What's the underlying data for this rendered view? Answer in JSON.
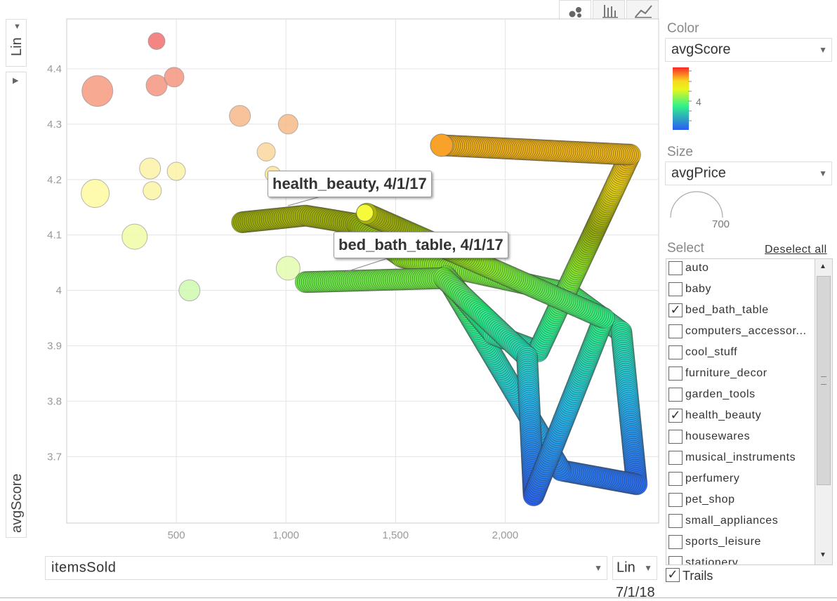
{
  "chart_data": {
    "type": "scatter",
    "xlabel": "itemsSold",
    "ylabel": "avgScore",
    "xlim": [
      0,
      2700
    ],
    "ylim": [
      3.58,
      4.49
    ],
    "x_ticks": [
      "500",
      "1,000",
      "1,500",
      "2,000"
    ],
    "x_tick_values": [
      500,
      1000,
      1500,
      2000
    ],
    "y_ticks": [
      "4.4",
      "4.3",
      "4.2",
      "4.1",
      "4",
      "3.9",
      "3.8",
      "3.7"
    ],
    "y_tick_values": [
      4.4,
      4.3,
      4.2,
      4.1,
      4.0,
      3.9,
      3.8,
      3.7
    ],
    "color_by": "avgScore",
    "color_legend_tick": "4",
    "size_by": "avgPrice",
    "size_legend_value": "700",
    "date": "7/1/18",
    "bubbles": [
      {
        "x": 410,
        "y": 4.45,
        "r": 12,
        "color": "#f27070"
      },
      {
        "x": 140,
        "y": 4.36,
        "r": 22,
        "color": "#f69a7f"
      },
      {
        "x": 410,
        "y": 4.37,
        "r": 15,
        "color": "#f49580"
      },
      {
        "x": 490,
        "y": 4.385,
        "r": 14,
        "color": "#f49580"
      },
      {
        "x": 790,
        "y": 4.315,
        "r": 15,
        "color": "#f7b889"
      },
      {
        "x": 1010,
        "y": 4.3,
        "r": 14,
        "color": "#f7bb89"
      },
      {
        "x": 910,
        "y": 4.25,
        "r": 13,
        "color": "#fad79c"
      },
      {
        "x": 940,
        "y": 4.21,
        "r": 11,
        "color": "#fbe39d"
      },
      {
        "x": 380,
        "y": 4.22,
        "r": 15,
        "color": "#fcf2a6"
      },
      {
        "x": 500,
        "y": 4.215,
        "r": 13,
        "color": "#fcf2a6"
      },
      {
        "x": 130,
        "y": 4.175,
        "r": 20,
        "color": "#fefaa0"
      },
      {
        "x": 390,
        "y": 4.18,
        "r": 13,
        "color": "#fcf5a6"
      },
      {
        "x": 310,
        "y": 4.097,
        "r": 18,
        "color": "#f1fba6"
      },
      {
        "x": 1010,
        "y": 4.04,
        "r": 17,
        "color": "#e3fcae"
      },
      {
        "x": 560,
        "y": 4.0,
        "r": 15,
        "color": "#cff9ae"
      }
    ],
    "highlight_bubbles": [
      {
        "x": 1360,
        "y": 4.14,
        "r": 12,
        "color": "#f5fb3a"
      },
      {
        "x": 1710,
        "y": 4.262,
        "r": 16,
        "color": "#f9a22a"
      }
    ],
    "trails": [
      {
        "name": "health_beauty",
        "tooltip": "health_beauty, 4/1/17",
        "points": [
          [
            800,
            4.123
          ],
          [
            1090,
            4.135
          ],
          [
            1320,
            4.12
          ],
          [
            1530,
            4.06
          ],
          [
            2290,
            3.995
          ],
          [
            2530,
            3.925
          ],
          [
            2600,
            3.65
          ],
          [
            2255,
            3.675
          ],
          [
            1730,
            4.025
          ],
          [
            1950,
            3.92
          ],
          [
            2150,
            3.89
          ],
          [
            2570,
            4.245
          ],
          [
            1710,
            4.262
          ]
        ]
      },
      {
        "name": "bed_bath_table",
        "tooltip": "bed_bath_table, 4/1/17",
        "points": [
          [
            1090,
            4.015
          ],
          [
            1720,
            4.022
          ],
          [
            2100,
            3.88
          ],
          [
            2130,
            3.63
          ],
          [
            2450,
            3.95
          ],
          [
            1360,
            4.14
          ]
        ]
      }
    ]
  },
  "tabs": [
    {
      "name": "bubble",
      "icon": "bubble-chart-icon"
    },
    {
      "name": "bar",
      "icon": "bar-chart-icon"
    },
    {
      "name": "line",
      "icon": "line-chart-icon"
    }
  ],
  "y_axis_scale": "Lin",
  "x_axis_scale": "Lin",
  "x_axis_dropdown": "itemsSold",
  "y_axis_dropdown": "avgScore",
  "color_panel": {
    "title": "Color",
    "value": "avgScore"
  },
  "size_panel": {
    "title": "Size",
    "value": "avgPrice"
  },
  "select_panel": {
    "title": "Select",
    "deselect_label": "Deselect all",
    "items": [
      {
        "label": "auto",
        "checked": false
      },
      {
        "label": "baby",
        "checked": false
      },
      {
        "label": "bed_bath_table",
        "checked": true
      },
      {
        "label": "computers_accessor...",
        "checked": false
      },
      {
        "label": "cool_stuff",
        "checked": false
      },
      {
        "label": "furniture_decor",
        "checked": false
      },
      {
        "label": "garden_tools",
        "checked": false
      },
      {
        "label": "health_beauty",
        "checked": true
      },
      {
        "label": "housewares",
        "checked": false
      },
      {
        "label": "musical_instruments",
        "checked": false
      },
      {
        "label": "perfumery",
        "checked": false
      },
      {
        "label": "pet_shop",
        "checked": false
      },
      {
        "label": "small_appliances",
        "checked": false
      },
      {
        "label": "sports_leisure",
        "checked": false
      },
      {
        "label": "stationery",
        "checked": false
      }
    ]
  },
  "trails_option": {
    "label": "Trails",
    "checked": true
  },
  "check_mark": "✓"
}
